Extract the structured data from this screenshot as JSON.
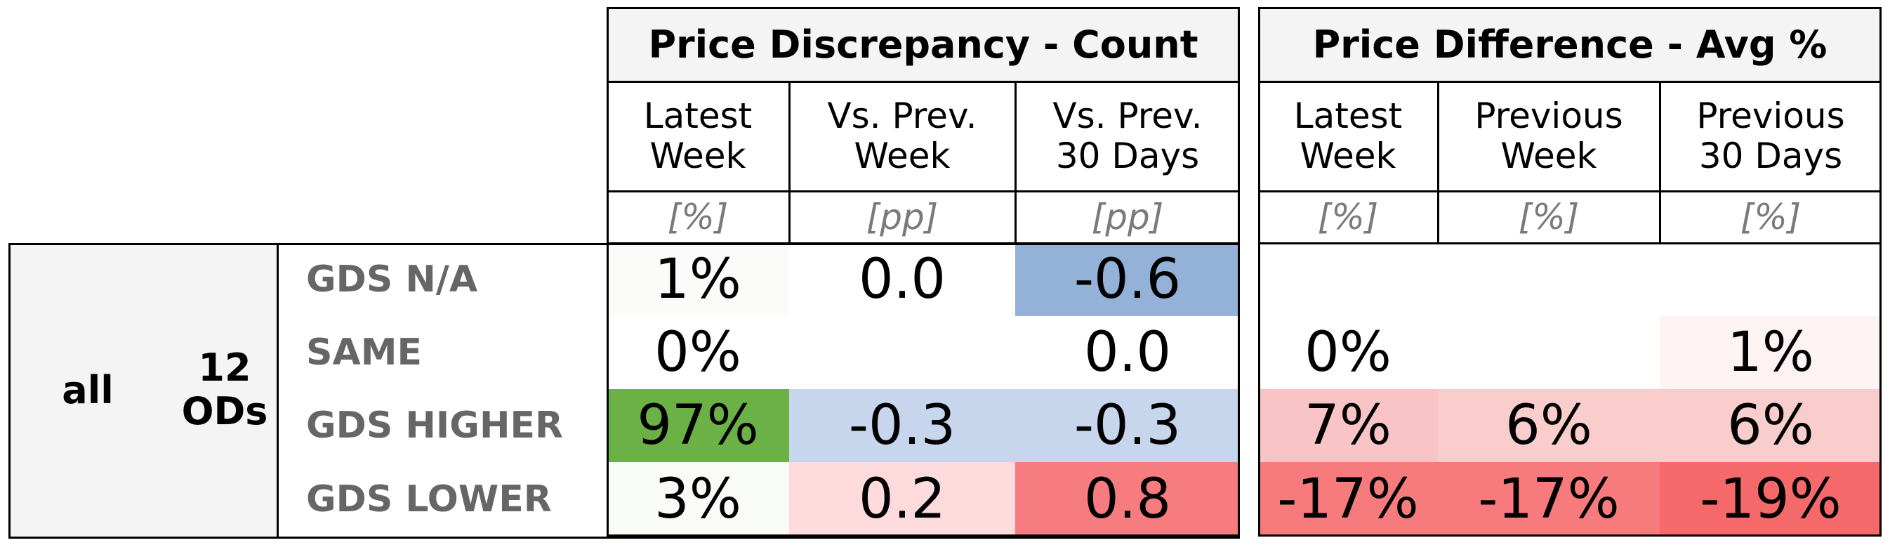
{
  "chart_data": {
    "type": "table",
    "sections": [
      {
        "title": "Price Discrepancy - Count",
        "columns": [
          {
            "header": "Latest\nWeek",
            "unit": "[%]"
          },
          {
            "header": "Vs. Prev.\nWeek",
            "unit": "[pp]"
          },
          {
            "header": "Vs. Prev.\n30 Days",
            "unit": "[pp]"
          }
        ]
      },
      {
        "title": "Price Difference - Avg %",
        "columns": [
          {
            "header": "Latest\nWeek",
            "unit": "[%]"
          },
          {
            "header": "Previous\nWeek",
            "unit": "[%]"
          },
          {
            "header": "Previous\n30 Days",
            "unit": "[%]"
          }
        ]
      }
    ],
    "group": {
      "segment": "all",
      "ods": "12\nODs"
    },
    "rows": [
      {
        "label": "GDS N/A",
        "values": [
          "1%",
          "0.0",
          "-0.6",
          "",
          "",
          ""
        ],
        "colors": [
          "#fbfcfa",
          "#ffffff",
          "#94b1d8",
          "#ffffff",
          "#ffffff",
          "#ffffff"
        ]
      },
      {
        "label": "SAME",
        "values": [
          "0%",
          "",
          "0.0",
          "0%",
          "",
          "1%"
        ],
        "colors": [
          "#ffffff",
          "#ffffff",
          "#ffffff",
          "#ffffff",
          "#ffffff",
          "#fdf3f3"
        ]
      },
      {
        "label": "GDS HIGHER",
        "values": [
          "97%",
          "-0.3",
          "-0.3",
          "7%",
          "6%",
          "6%"
        ],
        "colors": [
          "#6bb146",
          "#c7d6ec",
          "#c7d6ec",
          "#f9c4c5",
          "#facdcd",
          "#facdcd"
        ]
      },
      {
        "label": "GDS LOWER",
        "values": [
          "3%",
          "0.2",
          "0.8",
          "-17%",
          "-17%",
          "-19%"
        ],
        "colors": [
          "#f8fbf6",
          "#fddadb",
          "#f77c7f",
          "#f77a7c",
          "#f77a7c",
          "#f6696b"
        ]
      }
    ]
  }
}
